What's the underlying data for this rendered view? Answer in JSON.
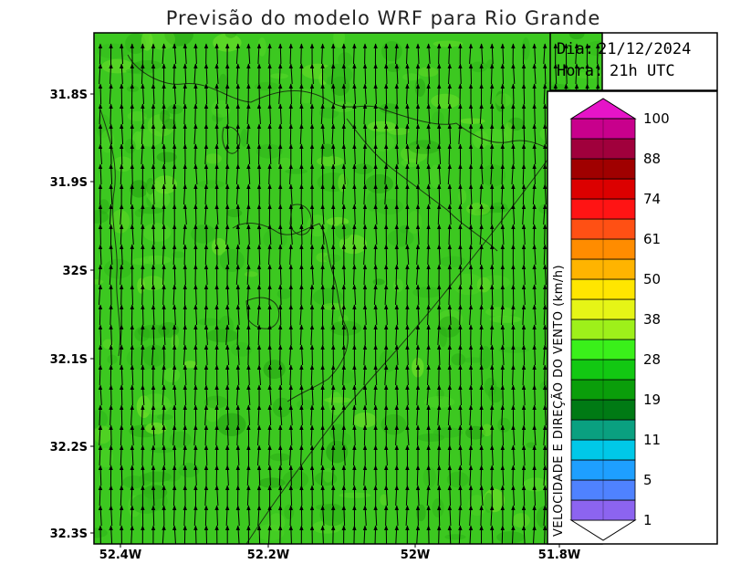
{
  "title": "Previsão do modelo WRF para Rio Grande",
  "info": {
    "date_label": "Dia:",
    "date_value": "21/12/2024",
    "hour_label": "Hora:",
    "hour_value": "21h UTC"
  },
  "axes": {
    "lat_ticks": [
      "31.8S",
      "31.9S",
      "32S",
      "32.1S",
      "32.2S",
      "32.3S"
    ],
    "lon_ticks": [
      "52.4W",
      "52.2W",
      "52W",
      "51.8W"
    ]
  },
  "colorbar": {
    "title": "VELOCIDADE E DIREÇÃO DO VENTO (km/h)",
    "labels": [
      "1",
      "5",
      "11",
      "19",
      "28",
      "38",
      "50",
      "61",
      "74",
      "88",
      "100"
    ],
    "colors": [
      "#8c64f0",
      "#4f82ff",
      "#1e9fff",
      "#00c8e8",
      "#0aa080",
      "#007a14",
      "#0a9e0a",
      "#12c812",
      "#3af01a",
      "#9ef01a",
      "#e6f516",
      "#ffe600",
      "#ffb400",
      "#ff8c00",
      "#ff5014",
      "#ff1414",
      "#dc0000",
      "#a00000",
      "#a0003c",
      "#c8008c",
      "#e614c8"
    ]
  },
  "map": {
    "background_color": "#3cc820",
    "arrow_color": "#000000",
    "wind_direction": "north",
    "wind_speed_range_kmh": [
      28,
      38
    ]
  }
}
